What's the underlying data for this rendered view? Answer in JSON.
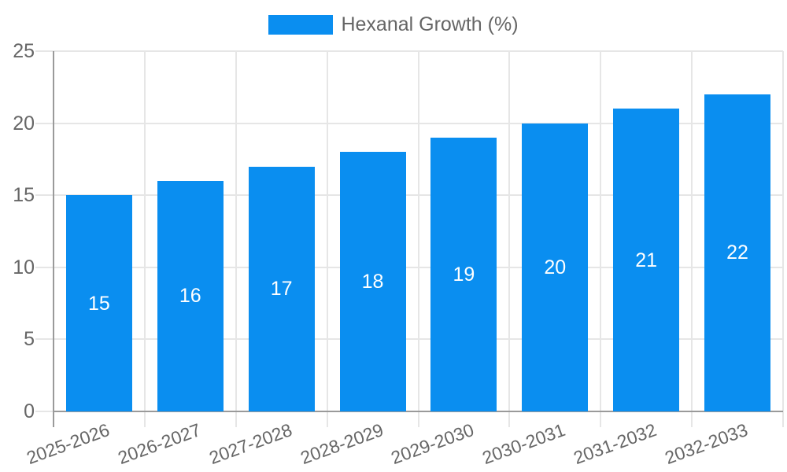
{
  "legend": {
    "items": [
      {
        "label": "Hexanal Growth (%)"
      }
    ]
  },
  "chart_data": {
    "type": "bar",
    "title": "",
    "xlabel": "",
    "ylabel": "",
    "categories": [
      "2025-2026",
      "2026-2027",
      "2027-2028",
      "2028-2029",
      "2029-2030",
      "2030-2031",
      "2031-2032",
      "2032-2033"
    ],
    "series": [
      {
        "name": "Hexanal Growth (%)",
        "color": "#0a8ef0",
        "values": [
          15,
          16,
          17,
          18,
          19,
          20,
          21,
          22
        ]
      }
    ],
    "ylim": [
      0,
      25
    ],
    "ytick_step": 5,
    "yticks": [
      0,
      5,
      10,
      15,
      20,
      25
    ],
    "grid": true,
    "legend_position": "top-center",
    "x_label_rotation_deg": -20,
    "value_labels": {
      "show": true,
      "position": "inside-center",
      "color": "#ffffff"
    }
  },
  "colors": {
    "bar": "#0a8ef0",
    "grid": "#e6e6e6",
    "axis": "#9a9a9a",
    "tick_text": "#666666",
    "legend_text": "#666666",
    "value_label_text": "#ffffff",
    "background": "#ffffff"
  }
}
